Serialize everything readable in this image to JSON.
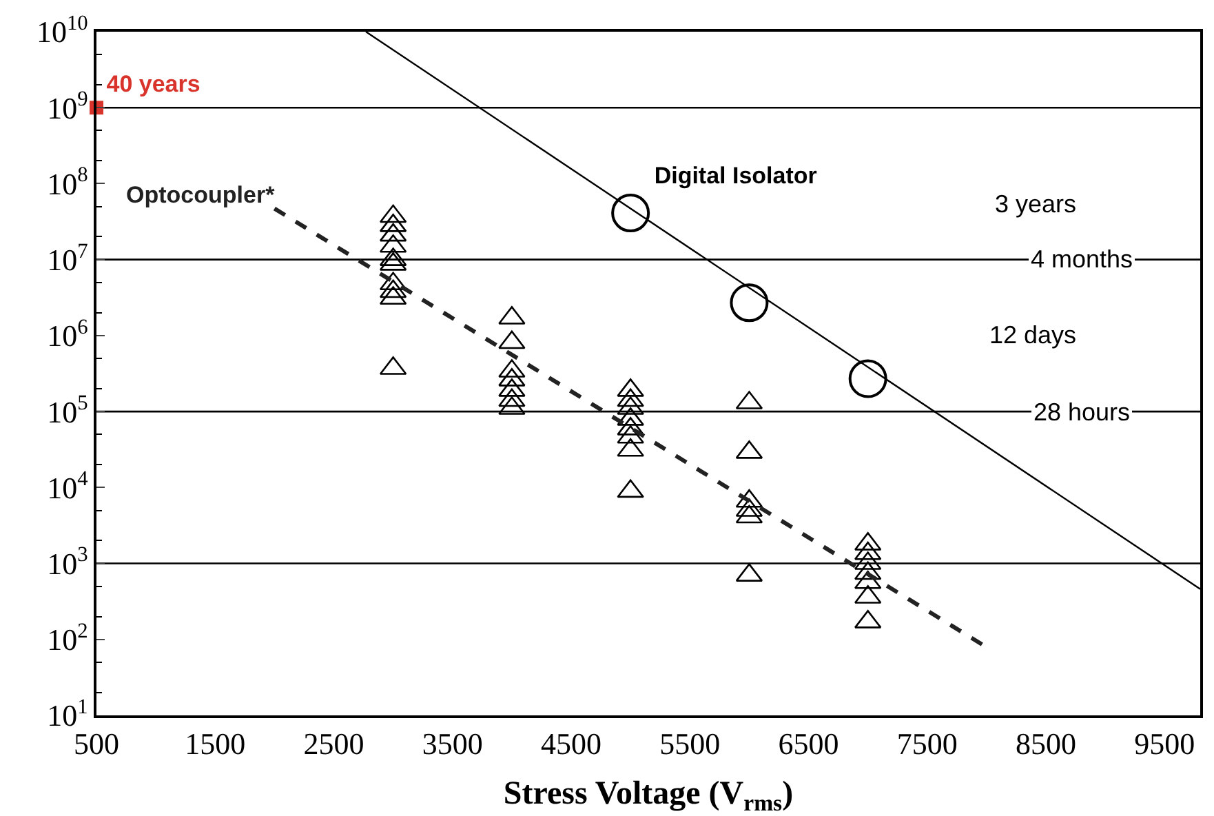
{
  "chart_data": {
    "type": "scatter",
    "xlabel": "Stress Voltage (V$_{rms}$)",
    "log": "y",
    "grid": false,
    "xlim": [
      500,
      9800
    ],
    "xticks": [
      500,
      1500,
      2500,
      3500,
      4500,
      5500,
      6500,
      7500,
      8500,
      9500
    ],
    "ylim": [
      10,
      10000000000
    ],
    "yticks": [
      {
        "value": 10,
        "label": "10$^{1}$"
      },
      {
        "value": 100,
        "label": "10$^{2}$"
      },
      {
        "value": 1000,
        "label": "10$^{3}$"
      },
      {
        "value": 10000,
        "label": "10$^{4}$"
      },
      {
        "value": 100000,
        "label": "10$^{5}$"
      },
      {
        "value": 1000000,
        "label": "10$^{6}$"
      },
      {
        "value": 10000000,
        "label": "10$^{7}$"
      },
      {
        "value": 100000000,
        "label": "10$^{8}$"
      },
      {
        "value": 1000000000,
        "label": "10$^{9}$"
      },
      {
        "value": 10000000000,
        "label": "10$^{10}$"
      }
    ],
    "series": [
      {
        "color": "#000000",
        "marker": "triangle",
        "x": [
          3000,
          3000,
          3000,
          3000,
          3000,
          3000,
          3000,
          3000,
          3000,
          3000,
          4000,
          4000,
          4000,
          4000,
          4000,
          4000,
          4000,
          5000,
          5000,
          5000,
          5000,
          5000,
          5000,
          5000,
          5000,
          6000,
          6000,
          6000,
          6000,
          6000,
          6000,
          7000,
          7000,
          7000,
          7000,
          7000,
          7000,
          7000
        ],
        "values": [
          37000000,
          28000000,
          21000000,
          15000000,
          10000000,
          8700000,
          4800000,
          3800000,
          3100000,
          370000,
          1700000,
          810000,
          340000,
          260000,
          190000,
          140000,
          110000,
          190000,
          140000,
          110000,
          79000,
          59000,
          46000,
          31000,
          8900,
          130000,
          29000,
          6600,
          5000,
          4100,
          700,
          1800,
          1350,
          1000,
          740,
          560,
          360,
          170
        ]
      },
      {
        "type": "line",
        "name": "Optocoupler*",
        "color": "#222222",
        "marker": "none",
        "line_style": "dashed",
        "x": [
          2000,
          8000
        ],
        "values": [
          47000000,
          79
        ]
      },
      {
        "name": "Digital Isolator",
        "color": "#000000",
        "marker": "circle",
        "x": [
          5000,
          6000,
          7000
        ],
        "values": [
          41000000,
          2700000,
          270000
        ]
      },
      {
        "type": "line",
        "color": "#000000",
        "marker": "none",
        "line_style": "solid",
        "x": [
          2770,
          9800
        ],
        "values": [
          10000000000,
          460
        ]
      },
      {
        "name": "40 years",
        "color": "#d9342b",
        "marker": "square",
        "x": [
          500
        ],
        "values": [
          1000000000
        ]
      }
    ],
    "ref_lines": [
      {
        "axis": "y",
        "value": 1000000000,
        "label": null
      },
      {
        "axis": "y",
        "value": 10000000,
        "label": "4 months"
      },
      {
        "axis": "y",
        "value": 100000,
        "label": "28 hours"
      },
      {
        "axis": "y",
        "value": 1000,
        "label": null
      }
    ],
    "annotations": [
      "3 years",
      "12 days"
    ]
  }
}
